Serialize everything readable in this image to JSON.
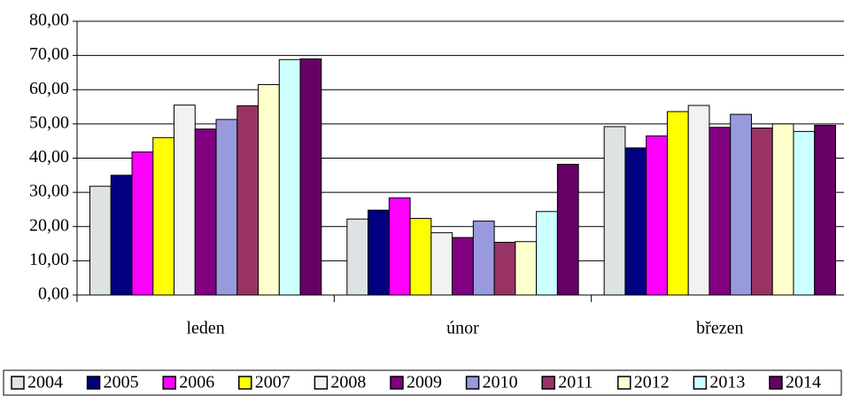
{
  "chart_data": {
    "type": "bar",
    "categories": [
      "leden",
      "únor",
      "březen"
    ],
    "series": [
      {
        "name": "2004",
        "color": "#dde3e3",
        "values": [
          31.8,
          22.2,
          49.2
        ]
      },
      {
        "name": "2005",
        "color": "#000080",
        "values": [
          35.0,
          24.8,
          43.0
        ]
      },
      {
        "name": "2006",
        "color": "#ff00ff",
        "values": [
          41.8,
          28.4,
          46.5
        ]
      },
      {
        "name": "2007",
        "color": "#ffff00",
        "values": [
          46.0,
          22.4,
          53.6
        ]
      },
      {
        "name": "2008",
        "color": "#f2f2f2",
        "values": [
          55.5,
          18.2,
          55.4
        ]
      },
      {
        "name": "2009",
        "color": "#800080",
        "values": [
          48.5,
          16.8,
          49.0
        ]
      },
      {
        "name": "2010",
        "color": "#9999dd",
        "values": [
          51.3,
          21.6,
          52.8
        ]
      },
      {
        "name": "2011",
        "color": "#993366",
        "values": [
          55.3,
          15.4,
          48.8
        ]
      },
      {
        "name": "2012",
        "color": "#ffffcc",
        "values": [
          61.5,
          15.6,
          50.0
        ]
      },
      {
        "name": "2013",
        "color": "#ccffff",
        "values": [
          68.8,
          24.4,
          47.8
        ]
      },
      {
        "name": "2014",
        "color": "#660066",
        "values": [
          69.0,
          38.2,
          49.6
        ]
      }
    ],
    "ylim": [
      0,
      80
    ],
    "yticks": [
      {
        "value": 0,
        "label": "0,00"
      },
      {
        "value": 10,
        "label": "10,00"
      },
      {
        "value": 20,
        "label": "20,00"
      },
      {
        "value": 30,
        "label": "30,00"
      },
      {
        "value": 40,
        "label": "40,00"
      },
      {
        "value": 50,
        "label": "50,00"
      },
      {
        "value": 60,
        "label": "60,00"
      },
      {
        "value": 70,
        "label": "70,00"
      },
      {
        "value": 80,
        "label": "80,00"
      }
    ],
    "grid": true
  }
}
